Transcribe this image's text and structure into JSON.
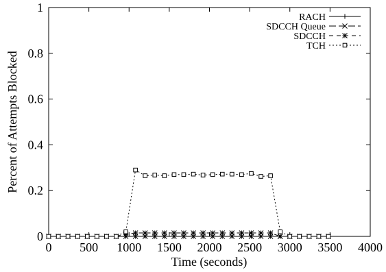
{
  "chart_data": {
    "type": "line",
    "title": "",
    "xlabel": "Time (seconds)",
    "ylabel": "Percent of Attempts Blocked",
    "xlim": [
      0,
      4000
    ],
    "ylim": [
      0,
      1
    ],
    "xticks": [
      0,
      500,
      1000,
      1500,
      2000,
      2500,
      3000,
      3500,
      4000
    ],
    "yticks": [
      0,
      0.2,
      0.4,
      0.6,
      0.8,
      1
    ],
    "ytick_labels": [
      "0",
      "0.2",
      "0.4",
      "0.6",
      "0.8",
      "1"
    ],
    "grid": false,
    "legend_position": "top-right",
    "x": [
      0,
      120,
      240,
      360,
      480,
      600,
      720,
      840,
      960,
      1080,
      1200,
      1320,
      1440,
      1560,
      1680,
      1800,
      1920,
      2040,
      2160,
      2280,
      2400,
      2520,
      2640,
      2760,
      2880,
      3000,
      3120,
      3240,
      3360,
      3480
    ],
    "series": [
      {
        "name": "RACH",
        "style": "solid",
        "marker": "plus",
        "values": [
          0,
          0,
          0,
          0,
          0,
          0,
          0,
          0,
          0,
          0,
          0,
          0,
          0,
          0,
          0,
          0,
          0,
          0,
          0,
          0,
          0,
          0,
          0,
          0,
          0,
          0,
          0,
          0,
          0,
          0
        ]
      },
      {
        "name": "SDCCH Queue",
        "style": "long-dash",
        "marker": "x",
        "values": [
          0,
          0,
          0,
          0,
          0,
          0,
          0,
          0,
          0,
          0,
          0,
          0,
          0,
          0,
          0,
          0,
          0,
          0,
          0,
          0,
          0,
          0,
          0,
          0,
          0,
          0,
          0,
          0,
          0,
          0
        ]
      },
      {
        "name": "SDCCH",
        "style": "dash",
        "marker": "star",
        "values": [
          0,
          0,
          0,
          0,
          0,
          0,
          0,
          0,
          0.01,
          0.015,
          0.015,
          0.015,
          0.015,
          0.015,
          0.015,
          0.015,
          0.015,
          0.015,
          0.015,
          0.015,
          0.015,
          0.015,
          0.015,
          0.015,
          0,
          0,
          0,
          0,
          0,
          0
        ]
      },
      {
        "name": "TCH",
        "style": "dot",
        "marker": "square",
        "values": [
          0,
          0,
          0,
          0,
          0,
          0,
          0,
          0,
          0.02,
          0.29,
          0.265,
          0.268,
          0.265,
          0.27,
          0.27,
          0.272,
          0.268,
          0.27,
          0.272,
          0.272,
          0.27,
          0.275,
          0.262,
          0.265,
          0.02,
          0,
          0,
          0,
          0,
          0
        ]
      }
    ]
  }
}
